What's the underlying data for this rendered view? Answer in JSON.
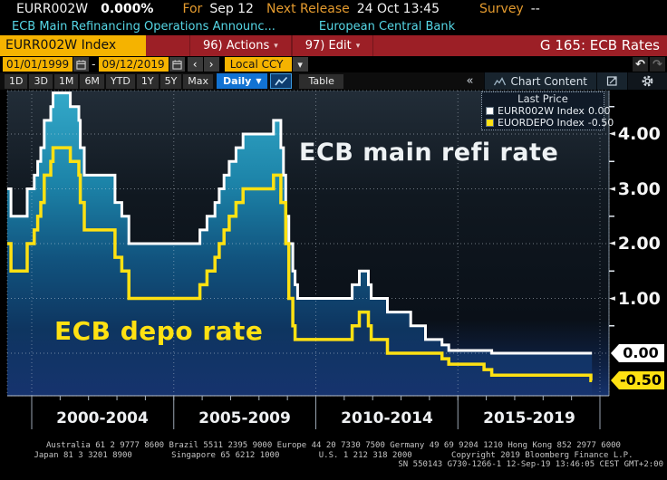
{
  "header": {
    "ticker": "EURR002W",
    "value": "0.000%",
    "for_label": "For",
    "for_value": "Sep 12",
    "next_release_label": "Next Release",
    "next_release_value": "24 Oct 13:45",
    "survey_label": "Survey",
    "survey_value": "--",
    "description": "ECB Main Refinancing Operations Announc...",
    "source": "European Central Bank"
  },
  "command_bar": {
    "security_field": "EURR002W Index",
    "actions_label": "96) Actions",
    "edit_label": "97) Edit",
    "caret": "▾",
    "screen_title": "G 165: ECB Rates"
  },
  "range_bar": {
    "start_date": "01/01/1999",
    "separator": "-",
    "end_date": "09/12/2019",
    "prev_glyph": "‹",
    "next_glyph": "›",
    "currency": "Local CCY",
    "dropdown_glyph": "▾",
    "undo_glyph": "↶",
    "redo_glyph": "↷"
  },
  "toolbar": {
    "periods": [
      "1D",
      "3D",
      "1M",
      "6M",
      "YTD",
      "1Y",
      "5Y",
      "Max"
    ],
    "frequency": "Daily",
    "frequency_caret": "▼",
    "table_label": "Table",
    "collapse_glyph": "«",
    "chart_content_label": "Chart Content"
  },
  "legend": {
    "title": "Last Price",
    "items": [
      {
        "name": "EURR002W Index",
        "value": "0.00",
        "color": "#ffffff"
      },
      {
        "name": "EUORDEPO Index",
        "value": "-0.50",
        "color": "#ffe112"
      }
    ]
  },
  "annotations": {
    "refi": "ECB main refi rate",
    "depo": "ECB depo rate"
  },
  "chart_data": {
    "type": "line",
    "subtype": "step",
    "title": "G 165: ECB Rates",
    "x_range": [
      1999.0,
      2020.3
    ],
    "y_range": [
      -0.78,
      4.79
    ],
    "grid": true,
    "y_gridlines": [
      4.0,
      3.0,
      2.0,
      1.0,
      0.0
    ],
    "y_minor_ticks": [
      4.5,
      3.5,
      2.5,
      1.5,
      0.5
    ],
    "y_tick_labels": [
      "4.00",
      "3.00",
      "2.00",
      "1.00"
    ],
    "y_tick_values": [
      4.0,
      3.0,
      2.0,
      1.0
    ],
    "y_axis_tags": [
      {
        "label": "0.00",
        "value": 0.0,
        "color": "#ffffff"
      },
      {
        "label": "-0.50",
        "value": -0.5,
        "color": "#ffe112"
      }
    ],
    "x_gridlines_years": [
      2000,
      2005,
      2010,
      2015,
      2020
    ],
    "x_tick_labels": [
      "2000-2004",
      "2005-2009",
      "2010-2014",
      "2015-2019"
    ],
    "x_label_centers_year": [
      2002.5,
      2007.5,
      2012.5,
      2017.5
    ],
    "legend_position": "top-right",
    "series": [
      {
        "name": "EURR002W Index (ECB main refi rate)",
        "color": "#ffffff",
        "fill": "teal-gradient",
        "points": [
          [
            1999.0,
            3.0
          ],
          [
            1999.27,
            2.5
          ],
          [
            1999.84,
            3.0
          ],
          [
            2000.09,
            3.25
          ],
          [
            2000.21,
            3.5
          ],
          [
            2000.32,
            3.75
          ],
          [
            2000.44,
            4.25
          ],
          [
            2000.67,
            4.5
          ],
          [
            2000.75,
            4.75
          ],
          [
            2001.36,
            4.5
          ],
          [
            2001.66,
            4.25
          ],
          [
            2001.71,
            3.75
          ],
          [
            2001.85,
            3.25
          ],
          [
            2002.93,
            2.75
          ],
          [
            2003.17,
            2.5
          ],
          [
            2003.42,
            2.0
          ],
          [
            2005.92,
            2.25
          ],
          [
            2006.17,
            2.5
          ],
          [
            2006.45,
            2.75
          ],
          [
            2006.6,
            3.0
          ],
          [
            2006.77,
            3.25
          ],
          [
            2006.95,
            3.5
          ],
          [
            2007.19,
            3.75
          ],
          [
            2007.44,
            4.0
          ],
          [
            2008.51,
            4.25
          ],
          [
            2008.77,
            3.75
          ],
          [
            2008.86,
            3.25
          ],
          [
            2008.94,
            2.5
          ],
          [
            2009.05,
            2.0
          ],
          [
            2009.19,
            1.5
          ],
          [
            2009.27,
            1.25
          ],
          [
            2009.36,
            1.0
          ],
          [
            2011.28,
            1.25
          ],
          [
            2011.53,
            1.5
          ],
          [
            2011.85,
            1.25
          ],
          [
            2011.95,
            1.0
          ],
          [
            2012.52,
            0.75
          ],
          [
            2013.34,
            0.5
          ],
          [
            2013.86,
            0.25
          ],
          [
            2014.44,
            0.15
          ],
          [
            2014.68,
            0.05
          ],
          [
            2016.19,
            0.0
          ],
          [
            2019.72,
            0.0
          ]
        ]
      },
      {
        "name": "EUORDEPO Index (ECB depo rate)",
        "color": "#ffe112",
        "fill": "none",
        "points": [
          [
            1999.0,
            2.0
          ],
          [
            1999.27,
            1.5
          ],
          [
            1999.84,
            2.0
          ],
          [
            2000.09,
            2.25
          ],
          [
            2000.21,
            2.5
          ],
          [
            2000.32,
            2.75
          ],
          [
            2000.44,
            3.25
          ],
          [
            2000.67,
            3.5
          ],
          [
            2000.75,
            3.75
          ],
          [
            2001.36,
            3.5
          ],
          [
            2001.66,
            3.25
          ],
          [
            2001.71,
            2.75
          ],
          [
            2001.85,
            2.25
          ],
          [
            2002.93,
            1.75
          ],
          [
            2003.17,
            1.5
          ],
          [
            2003.42,
            1.0
          ],
          [
            2005.92,
            1.25
          ],
          [
            2006.17,
            1.5
          ],
          [
            2006.45,
            1.75
          ],
          [
            2006.6,
            2.0
          ],
          [
            2006.77,
            2.25
          ],
          [
            2006.95,
            2.5
          ],
          [
            2007.19,
            2.75
          ],
          [
            2007.44,
            3.0
          ],
          [
            2008.51,
            3.25
          ],
          [
            2008.77,
            2.75
          ],
          [
            2008.94,
            2.0
          ],
          [
            2009.05,
            1.0
          ],
          [
            2009.19,
            0.5
          ],
          [
            2009.27,
            0.25
          ],
          [
            2011.28,
            0.5
          ],
          [
            2011.53,
            0.75
          ],
          [
            2011.85,
            0.5
          ],
          [
            2011.95,
            0.25
          ],
          [
            2012.52,
            0.0
          ],
          [
            2014.44,
            -0.1
          ],
          [
            2014.68,
            -0.2
          ],
          [
            2015.92,
            -0.3
          ],
          [
            2016.19,
            -0.4
          ],
          [
            2019.68,
            -0.5
          ],
          [
            2019.72,
            -0.5
          ]
        ]
      }
    ]
  },
  "footer": {
    "line1": "Australia 61 2 9777 8600 Brazil 5511 2395 9000 Europe 44 20 7330 7500 Germany 49 69 9204 1210 Hong Kong 852 2977 6000",
    "line2": "Japan 81 3 3201 8900        Singapore 65 6212 1000        U.S. 1 212 318 2000        Copyright 2019 Bloomberg Finance L.P.",
    "line3": "SN 550143 G730-1266-1 12-Sep-19 13:46:05 CEST GMT+2:00"
  },
  "colors": {
    "amber": "#f5b300",
    "banner_red": "#9c1f26",
    "active_blue": "#1272d2",
    "cyan_text": "#56d7e6",
    "label_amber": "#e39a2e",
    "refi_line": "#ffffff",
    "depo_line": "#ffe112",
    "fill_teal_top": "#2ea4c4",
    "fill_navy_bottom": "#16336e"
  }
}
